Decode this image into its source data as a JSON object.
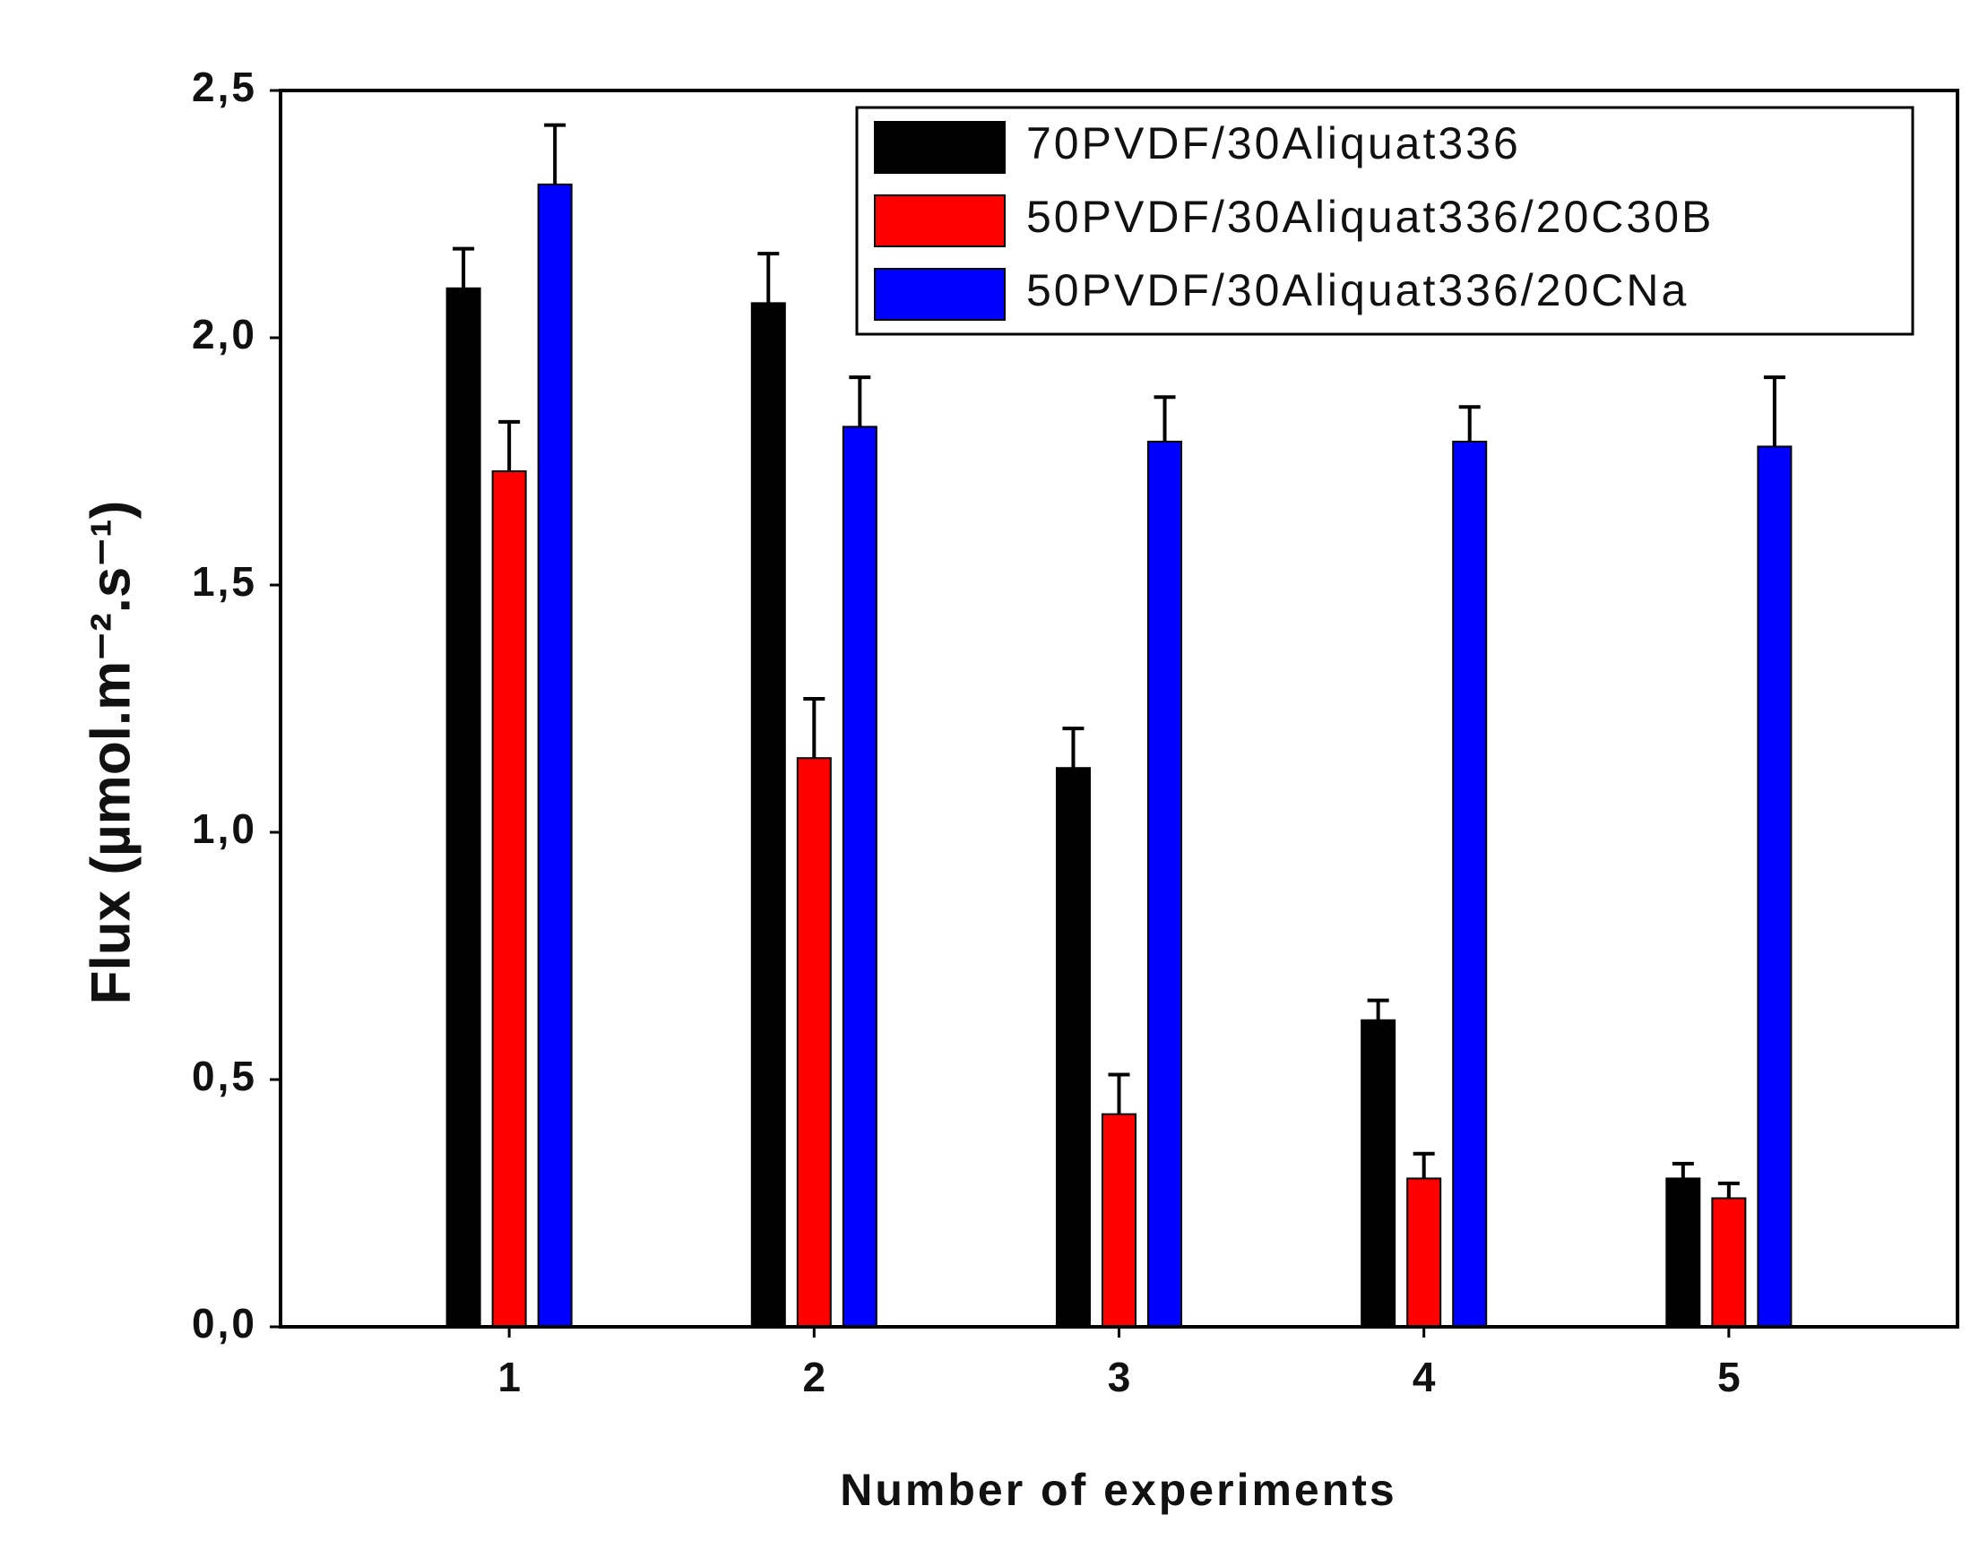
{
  "chart_data": {
    "type": "bar",
    "xlabel": "Number of experiments",
    "ylabel": "Flux (µmol.m⁻².s⁻¹)",
    "categories": [
      "1",
      "2",
      "3",
      "4",
      "5"
    ],
    "series": [
      {
        "name": "70PVDF/30Aliquat336",
        "color": "#000000",
        "values": [
          2.1,
          2.07,
          1.13,
          0.62,
          0.3
        ],
        "errors": [
          0.08,
          0.1,
          0.08,
          0.04,
          0.03
        ]
      },
      {
        "name": "50PVDF/30Aliquat336/20C30B",
        "color": "#ff0000",
        "values": [
          1.73,
          1.15,
          0.43,
          0.3,
          0.26
        ],
        "errors": [
          0.1,
          0.12,
          0.08,
          0.05,
          0.03
        ]
      },
      {
        "name": "50PVDF/30Aliquat336/20CNa",
        "color": "#0000ff",
        "values": [
          2.31,
          1.82,
          1.79,
          1.79,
          1.78
        ],
        "errors": [
          0.12,
          0.1,
          0.09,
          0.07,
          0.14
        ]
      }
    ],
    "ylim": [
      0,
      2.5
    ],
    "yticks": [
      {
        "value": 0,
        "label": "0,0"
      },
      {
        "value": 0.5,
        "label": "0,5"
      },
      {
        "value": 1,
        "label": "1,0"
      },
      {
        "value": 1.5,
        "label": "1,5"
      },
      {
        "value": 2,
        "label": "2,0"
      },
      {
        "value": 2.5,
        "label": "2,5"
      }
    ],
    "legend": "upper right"
  }
}
